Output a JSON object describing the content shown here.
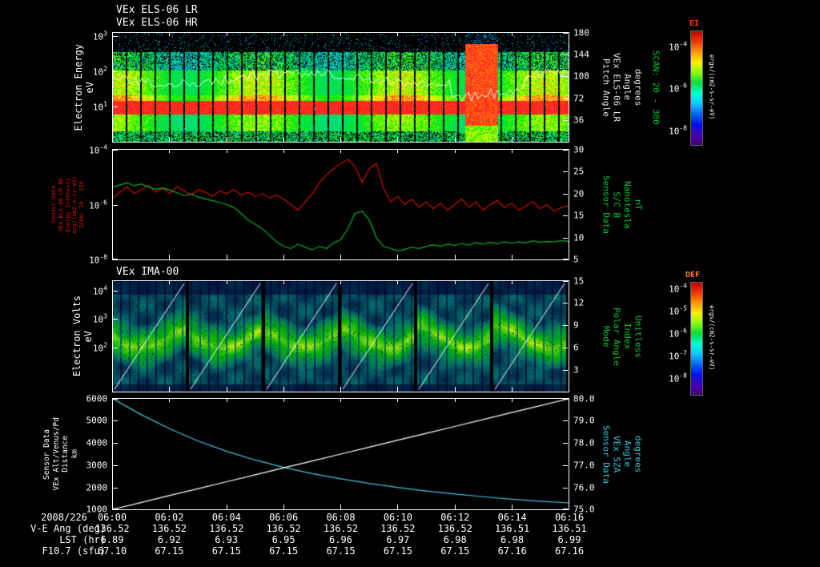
{
  "header": {
    "title1": "VEx ELS-06 LR",
    "title2": "VEx ELS-06 HR"
  },
  "colors": {
    "bg": "#000000",
    "fg": "#ffffff",
    "green": "#00c832",
    "red": "#e81000",
    "cyan": "#2cc8dc",
    "series_red": "#d01000",
    "series_green": "#00b428",
    "series_cyan": "#40c8e0",
    "series_white": "#ffffff",
    "cb_ei_title": "#ff3a00",
    "cb_def_title": "#ff8800",
    "rainbow_stops": [
      "#bb0000",
      "#ff3300",
      "#ff9900",
      "#ffee00",
      "#88ff00",
      "#00dd44",
      "#00ffcc",
      "#00ccff",
      "#0066ff",
      "#0011ee",
      "#4400bb",
      "#46006e"
    ]
  },
  "panels": {
    "els": {
      "left_label_lines": [
        "Electron Energy",
        "eV"
      ],
      "left_ticks": [
        {
          "t": "10^3",
          "f": 0.033
        },
        {
          "t": "10^2",
          "f": 0.355
        },
        {
          "t": "10^1",
          "f": 0.677
        }
      ],
      "right_ticks": [
        {
          "t": "180",
          "f": 0.01
        },
        {
          "t": "144",
          "f": 0.2
        },
        {
          "t": "108",
          "f": 0.4
        },
        {
          "t": "72",
          "f": 0.6
        },
        {
          "t": "36",
          "f": 0.8
        }
      ],
      "right_label_lines": [
        "Pitch Angle",
        "VEx ELS-06 LR",
        "Angle",
        "degrees"
      ],
      "right_label_scan": "SCAN: 20 - 300"
    },
    "mag": {
      "left_label_lines": [
        "Sensor Data",
        "VEx ELS-06 LR Bk",
        "Energy Intensity",
        "erg/(cm2-s-sr-eV)",
        "SCAN: 20 - 150"
      ],
      "left_ticks": [
        {
          "t": "10^-4",
          "f": 0.01
        },
        {
          "t": "10^-6",
          "f": 0.5
        },
        {
          "t": "10^-8",
          "f": 0.99
        }
      ],
      "right_ticks": [
        {
          "t": "30",
          "f": 0.01
        },
        {
          "t": "25",
          "f": 0.2
        },
        {
          "t": "20",
          "f": 0.4
        },
        {
          "t": "15",
          "f": 0.6
        },
        {
          "t": "10",
          "f": 0.8
        },
        {
          "t": "5",
          "f": 0.99
        }
      ],
      "right_label_lines": [
        "Sensor Data",
        "S/C B",
        "Nanotesla",
        "nT"
      ]
    },
    "ima": {
      "title": "VEx IMA-00",
      "left_label_lines": [
        "Electron Volts",
        "eV"
      ],
      "left_ticks": [
        {
          "t": "10^4",
          "f": 0.09
        },
        {
          "t": "10^3",
          "f": 0.345
        },
        {
          "t": "10^2",
          "f": 0.6
        }
      ],
      "right_ticks": [
        {
          "t": "15",
          "f": 0.01
        },
        {
          "t": "12",
          "f": 0.2
        },
        {
          "t": "9",
          "f": 0.4
        },
        {
          "t": "6",
          "f": 0.6
        },
        {
          "t": "3",
          "f": 0.8
        }
      ],
      "right_label_lines": [
        "Mode",
        "Polar Angle",
        "Index",
        "Unitless"
      ]
    },
    "ephem": {
      "left_label_lines": [
        "Sensor Data",
        "VEx Alt/Venus/Pd",
        "Distance",
        "km"
      ],
      "left_ticks": [
        {
          "t": "6000",
          "f": 0.01
        },
        {
          "t": "5000",
          "f": 0.2
        },
        {
          "t": "4000",
          "f": 0.4
        },
        {
          "t": "3000",
          "f": 0.6
        },
        {
          "t": "2000",
          "f": 0.8
        },
        {
          "t": "1000",
          "f": 0.99
        }
      ],
      "right_ticks": [
        {
          "t": "80.0",
          "f": 0.01
        },
        {
          "t": "79.0",
          "f": 0.2
        },
        {
          "t": "78.0",
          "f": 0.4
        },
        {
          "t": "77.0",
          "f": 0.6
        },
        {
          "t": "76.0",
          "f": 0.8
        },
        {
          "t": "75.0",
          "f": 0.99
        }
      ],
      "right_label_lines": [
        "Sensor Data",
        "VEx SZA",
        "Angle",
        "degrees"
      ]
    }
  },
  "colorbars": [
    {
      "title": "EI",
      "units": "ergs/(cm2-s-sr-eV)",
      "ticks": [
        {
          "t": "10^-4",
          "f": 0.14
        },
        {
          "t": "10^-6",
          "f": 0.51
        },
        {
          "t": "10^-8",
          "f": 0.88
        }
      ]
    },
    {
      "title": "DEF",
      "units": "ergs/(cm2-s-sr-eV)",
      "ticks": [
        {
          "t": "10^-4",
          "f": 0.06
        },
        {
          "t": "10^-5",
          "f": 0.26
        },
        {
          "t": "10^-6",
          "f": 0.46
        },
        {
          "t": "10^-7",
          "f": 0.66
        },
        {
          "t": "10^-8",
          "f": 0.86
        }
      ]
    }
  ],
  "xaxis": {
    "date": "2008/226",
    "ticks": [
      "06:00",
      "06:02",
      "06:04",
      "06:06",
      "06:08",
      "06:10",
      "06:12",
      "06:14",
      "06:16"
    ]
  },
  "footer_rows": [
    {
      "label": "V-E Ang (deg)",
      "values": [
        "136.52",
        "136.52",
        "136.52",
        "136.52",
        "136.52",
        "136.52",
        "136.52",
        "136.51",
        "136.51"
      ]
    },
    {
      "label": "LST (hr)",
      "values": [
        "6.89",
        "6.92",
        "6.93",
        "6.95",
        "6.96",
        "6.97",
        "6.98",
        "6.98",
        "6.99"
      ]
    },
    {
      "label": "F10.7 (sfu)",
      "values": [
        "67.10",
        "67.15",
        "67.15",
        "67.15",
        "67.15",
        "67.15",
        "67.15",
        "67.16",
        "67.16"
      ]
    }
  ],
  "chart_data": [
    {
      "type": "heatmap",
      "panel": "els",
      "title": "VEx ELS-06 LR/HR electron energy-time spectrogram",
      "xlabel": "UT 2008/226 06:00 - 06:16",
      "ylabel": "Electron Energy (eV)",
      "y_ticks": [
        "10^1",
        "10^2",
        "10^3"
      ],
      "ylog_range": [
        0,
        3.1
      ],
      "right_axis_label": "Pitch Angle VEx ELS-06 LR (degrees), SCAN: 20 - 300",
      "right_ticks": [
        180,
        144,
        108,
        72,
        36
      ],
      "z_label": "EI",
      "z_units": "ergs/(cm2-s-sr-eV)",
      "z_log_range": [
        -8,
        -4
      ],
      "features": [
        "about 32 vertical scan bars separated by narrow black gaps",
        "intense red flux band near 7-20 eV persisting across the whole interval",
        "green-yellow flux between 20 and 300 eV",
        "sparse cyan-blue speckles above 300 eV",
        "broadband red enhancement near 06:09",
        "wiggly white spacecraft-potential trace overlay"
      ],
      "render": {
        "seed": 11,
        "bar_period": 18,
        "gap": 2,
        "event_frac": [
          0.772,
          0.845
        ],
        "trace_yfrac": 0.42
      }
    },
    {
      "type": "line",
      "panel": "mag",
      "x_start_min": 0,
      "x_step_min": 0.25,
      "left_axis": {
        "label": "Sensor Data VEx ELS-06 LR Bk Energy Intensity",
        "units": "erg/(cm2-s-sr-eV)",
        "scale": "log",
        "range_log10": [
          -8,
          -4
        ],
        "ticks": [
          "10^-4",
          "10^-6",
          "10^-8"
        ]
      },
      "right_axis": {
        "label": "Sensor Data S/C B Nanotesla",
        "units": "nT",
        "range": [
          5,
          30
        ],
        "ticks": [
          30,
          25,
          20,
          15,
          10,
          5
        ]
      },
      "series": [
        {
          "name": "VEx ELS-06 LR Bk Energy Intensity",
          "axis": "left",
          "color": "#d01000",
          "log10_values": [
            -5.75,
            -5.55,
            -5.35,
            -5.6,
            -5.45,
            -5.3,
            -5.55,
            -5.4,
            -5.6,
            -5.35,
            -5.5,
            -5.65,
            -5.45,
            -5.55,
            -5.7,
            -5.5,
            -5.6,
            -5.45,
            -5.65,
            -5.55,
            -5.7,
            -5.6,
            -5.75,
            -5.65,
            -5.8,
            -6.0,
            -6.2,
            -5.9,
            -5.6,
            -5.2,
            -4.9,
            -4.7,
            -4.5,
            -4.35,
            -4.6,
            -5.2,
            -4.7,
            -4.5,
            -5.4,
            -5.9,
            -5.7,
            -6.0,
            -5.8,
            -6.1,
            -5.9,
            -6.15,
            -5.95,
            -6.2,
            -6.0,
            -5.8,
            -6.1,
            -5.9,
            -6.2,
            -6.0,
            -5.85,
            -6.1,
            -5.95,
            -6.2,
            -6.05,
            -5.9,
            -6.15,
            -6.0,
            -6.25,
            -6.1,
            -6.05
          ]
        },
        {
          "name": "S/C B Nanotesla",
          "axis": "right",
          "color": "#00b428",
          "values": [
            21.5,
            22.0,
            22.5,
            21.8,
            22.2,
            21.5,
            21.0,
            21.3,
            20.8,
            20.2,
            19.6,
            19.9,
            19.2,
            18.8,
            18.4,
            18.0,
            17.5,
            16.8,
            15.5,
            14.0,
            13.0,
            12.0,
            10.5,
            9.0,
            8.0,
            7.5,
            8.5,
            7.8,
            7.2,
            8.0,
            7.5,
            8.8,
            9.5,
            12.0,
            15.5,
            16.0,
            14.0,
            10.0,
            8.0,
            7.5,
            7.0,
            7.3,
            7.8,
            7.5,
            8.0,
            8.3,
            8.0,
            8.5,
            8.2,
            8.6,
            8.3,
            8.8,
            8.5,
            8.9,
            8.6,
            9.0,
            8.7,
            9.0,
            8.8,
            9.2,
            8.9,
            9.1,
            9.0,
            9.3,
            9.1
          ]
        }
      ]
    },
    {
      "type": "heatmap",
      "panel": "ima",
      "title": "VEx IMA-00 ion spectrogram",
      "ylabel": "Electron Volts (eV)",
      "y_ticks": [
        "10^2",
        "10^3",
        "10^4"
      ],
      "right_axis_label": "Mode / Polar Angle Index (Unitless)",
      "right_ticks": [
        15,
        12,
        9,
        6,
        3
      ],
      "z_label": "DEF",
      "z_units": "ergs/(cm2-s-sr-eV)",
      "z_log_range": [
        -8,
        -4
      ],
      "features": [
        "six elevation-scan segments separated by black gaps",
        "diagonal white polar-angle ramp rising left-to-right in each segment",
        "dark blue noisy background counts",
        "green-yellow ion population blobs near 100-500 eV"
      ],
      "render": {
        "seed": 29,
        "segments": 6,
        "seg_gap": 4,
        "stripe_period": 11
      }
    },
    {
      "type": "line",
      "panel": "ephem",
      "x_start_min": 0,
      "x_step_min": 1,
      "left_axis": {
        "label": "Sensor Data VEx Alt/Venus/Pd Distance",
        "units": "km",
        "range": [
          1000,
          6000
        ],
        "ticks": [
          6000,
          5000,
          4000,
          3000,
          2000,
          1000
        ]
      },
      "right_axis": {
        "label": "Sensor Data VEx SZA Angle",
        "units": "degrees",
        "range": [
          75,
          80
        ],
        "ticks": [
          80,
          79,
          78,
          77,
          76,
          75
        ]
      },
      "series": [
        {
          "name": "VEx Altitude / Venus / Pd Distance",
          "axis": "left",
          "color": "#40c8e0",
          "values": [
            6000,
            5280,
            4640,
            4090,
            3620,
            3230,
            2900,
            2620,
            2380,
            2170,
            1990,
            1830,
            1690,
            1570,
            1460,
            1370,
            1290
          ]
        },
        {
          "name": "VEx SZA",
          "axis": "right",
          "color": "#ffffff",
          "values": [
            75.0,
            75.31,
            75.63,
            75.94,
            76.25,
            76.56,
            76.88,
            77.19,
            77.5,
            77.81,
            78.13,
            78.44,
            78.75,
            79.06,
            79.38,
            79.69,
            80.0
          ]
        }
      ]
    }
  ]
}
